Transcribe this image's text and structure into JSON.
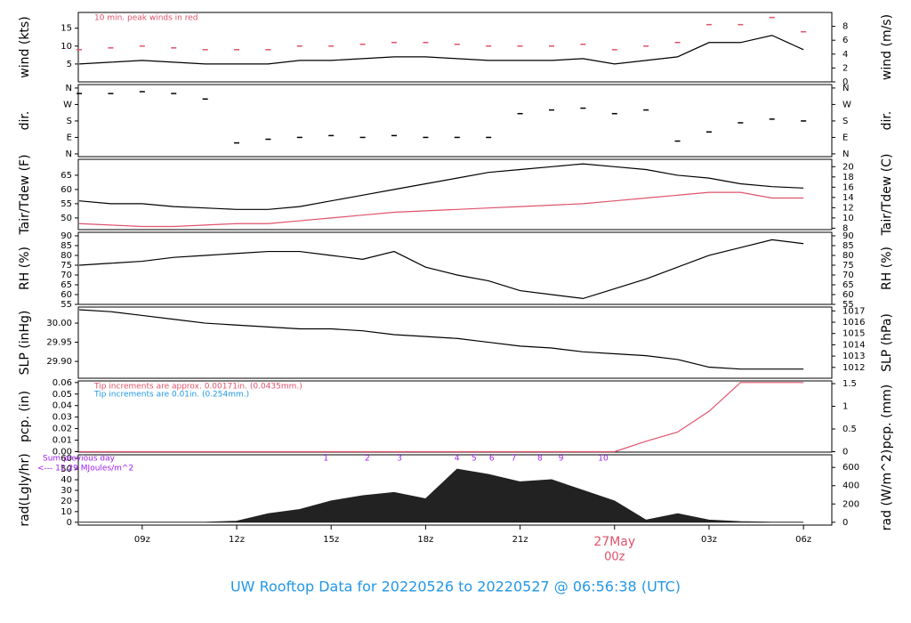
{
  "title": "UW Rooftop Data for 20220526  to  20220527 @ 06:56:38  (UTC)",
  "chart_data": [
    {
      "type": "line",
      "ylabel": "wind (kts)",
      "y2label": "wind (m/s)",
      "xlim": [
        6.97,
        30.9
      ],
      "x": [
        7,
        8,
        9,
        10,
        11,
        12,
        13,
        14,
        15,
        16,
        17,
        18,
        19,
        20,
        21,
        22,
        23,
        24,
        25,
        26,
        27,
        28,
        29,
        30
      ],
      "ylim": [
        0,
        19.4
      ],
      "yticks": [
        5,
        10,
        15
      ],
      "y2lim": [
        0,
        10
      ],
      "y2ticks": [
        0,
        2,
        4,
        6,
        8
      ],
      "notes": [
        {
          "text": "10 min. peak winds in red",
          "color": "#df536b"
        }
      ],
      "series": [
        {
          "color": "#000000",
          "values": [
            5,
            5.5,
            6,
            5.5,
            5,
            5,
            5,
            6,
            6,
            6.5,
            7,
            7,
            6.5,
            6,
            6,
            6,
            6.5,
            5,
            6,
            7,
            11,
            11,
            13,
            9
          ]
        },
        {
          "color": "#df536b",
          "marker": "dash",
          "values": [
            9,
            9.5,
            10,
            9.5,
            9,
            9,
            9,
            10,
            10,
            10.5,
            11,
            11,
            10.5,
            10,
            10,
            10,
            10.5,
            9,
            10,
            11,
            16,
            16,
            18,
            14
          ]
        }
      ]
    },
    {
      "type": "scatter",
      "ylabel": "dir.",
      "y2label": "dir.",
      "xlim": [
        6.97,
        30.9
      ],
      "x": [
        7,
        8,
        9,
        10,
        11,
        12,
        13,
        14,
        15,
        16,
        17,
        18,
        19,
        20,
        21,
        22,
        23,
        24,
        25,
        26,
        27,
        28,
        29,
        30
      ],
      "ylim": [
        -15,
        379
      ],
      "yticks": [
        {
          "value": 0,
          "label": "N"
        },
        {
          "value": 90,
          "label": "E"
        },
        {
          "value": 180,
          "label": "S"
        },
        {
          "value": 270,
          "label": "W"
        },
        {
          "value": 360,
          "label": "N"
        }
      ],
      "y2lim": [
        -15,
        379
      ],
      "y2ticks": [
        {
          "value": 0,
          "label": "N"
        },
        {
          "value": 90,
          "label": "E"
        },
        {
          "value": 180,
          "label": "S"
        },
        {
          "value": 270,
          "label": "W"
        },
        {
          "value": 360,
          "label": "N"
        }
      ],
      "series": [
        {
          "color": "#000000",
          "values": [
            330,
            330,
            340,
            330,
            300,
            60,
            80,
            90,
            100,
            90,
            100,
            90,
            90,
            90,
            220,
            240,
            250,
            220,
            240,
            70,
            120,
            170,
            190,
            180
          ]
        }
      ]
    },
    {
      "type": "line",
      "ylabel": "Tair/Tdew (F)",
      "y2label": "Tair/Tdew (C)",
      "xlim": [
        6.97,
        30.9
      ],
      "x": [
        7,
        8,
        9,
        10,
        11,
        12,
        13,
        14,
        15,
        16,
        17,
        18,
        19,
        20,
        21,
        22,
        23,
        24,
        25,
        26,
        27,
        28,
        29,
        30
      ],
      "ylim": [
        45.9,
        70.6
      ],
      "yticks": [
        50,
        55,
        60,
        65
      ],
      "y2lim": [
        7.72,
        21.44
      ],
      "y2ticks": [
        8,
        10,
        12,
        14,
        16,
        18,
        20
      ],
      "series": [
        {
          "color": "#000000",
          "values": [
            56,
            55,
            55,
            54,
            53.5,
            53,
            53,
            54,
            56,
            58,
            60,
            62,
            64,
            66,
            67,
            68,
            69,
            68,
            67,
            65,
            64,
            62,
            61,
            60.5
          ]
        },
        {
          "color": "#df536b",
          "values": [
            48,
            47.5,
            47,
            47,
            47.5,
            48,
            48,
            49,
            50,
            51,
            52,
            52.5,
            53,
            53.5,
            54,
            54.5,
            55,
            56,
            57,
            58,
            59,
            59,
            57,
            57
          ]
        }
      ]
    },
    {
      "type": "line",
      "ylabel": "RH (%)",
      "y2label": "RH (%)",
      "xlim": [
        6.97,
        30.9
      ],
      "x": [
        7,
        8,
        9,
        10,
        11,
        12,
        13,
        14,
        15,
        16,
        17,
        18,
        19,
        20,
        21,
        22,
        23,
        24,
        25,
        26,
        27,
        28,
        29,
        30
      ],
      "ylim": [
        55,
        91.8
      ],
      "yticks": [
        55,
        60,
        65,
        70,
        75,
        80,
        85,
        90
      ],
      "y2lim": [
        55,
        91.8
      ],
      "y2ticks": [
        55,
        60,
        65,
        70,
        75,
        80,
        85,
        90
      ],
      "series": [
        {
          "color": "#000000",
          "values": [
            75,
            76,
            77,
            79,
            80,
            81,
            82,
            82,
            80,
            78,
            82,
            74,
            70,
            67,
            62,
            60,
            58,
            63,
            68,
            74,
            80,
            84,
            88,
            86
          ]
        }
      ]
    },
    {
      "type": "line",
      "ylabel": "SLP (inHg)",
      "y2label": "SLP (hPa)",
      "xlim": [
        6.97,
        30.9
      ],
      "x": [
        7,
        8,
        9,
        10,
        11,
        12,
        13,
        14,
        15,
        16,
        17,
        18,
        19,
        20,
        21,
        22,
        23,
        24,
        25,
        26,
        27,
        28,
        29,
        30
      ],
      "ylim": [
        29.856,
        30.042
      ],
      "yticks": [
        {
          "value": 29.9,
          "label": "29.90"
        },
        {
          "value": 29.95,
          "label": "29.95"
        },
        {
          "value": 30,
          "label": "30.00"
        }
      ],
      "y2lim": [
        1011.04,
        1017.34
      ],
      "y2ticks": [
        1012,
        1013,
        1014,
        1015,
        1016,
        1017
      ],
      "series": [
        {
          "color": "#000000",
          "values": [
            30.035,
            30.03,
            30.02,
            30.01,
            30.0,
            29.995,
            29.99,
            29.985,
            29.985,
            29.98,
            29.97,
            29.965,
            29.96,
            29.95,
            29.94,
            29.935,
            29.925,
            29.92,
            29.915,
            29.905,
            29.885,
            29.88,
            29.88,
            29.88
          ]
        }
      ]
    },
    {
      "type": "line",
      "ylabel": "pcp. (in)",
      "y2label": "pcp. (mm)",
      "xlim": [
        6.97,
        30.9
      ],
      "x": [
        7,
        8,
        9,
        10,
        11,
        12,
        13,
        14,
        15,
        16,
        17,
        18,
        19,
        20,
        21,
        22,
        23,
        24,
        25,
        26,
        27,
        28,
        29,
        30
      ],
      "ylim": [
        -0.0004,
        0.0614
      ],
      "yticks": [
        {
          "value": 0,
          "label": "0.00"
        },
        0.01,
        0.02,
        0.03,
        0.04,
        0.05,
        0.06
      ],
      "y2lim": [
        -0.01,
        1.56
      ],
      "y2ticks": [
        0,
        0.5,
        1,
        1.5
      ],
      "notes": [
        {
          "text": "Tip increments are approx. 0.00171in. (0.0435mm.)",
          "color": "#df536b"
        },
        {
          "text": "Tip increments are 0.01in. (0.254mm.)",
          "color": "#2297e6"
        }
      ],
      "series": [
        {
          "color": "#df536b",
          "values": [
            0,
            0,
            0,
            0,
            0,
            0,
            0,
            0,
            0,
            0,
            0,
            0,
            0,
            0,
            0,
            0,
            0,
            0,
            0.009,
            0.017,
            0.035,
            0.06,
            0.06,
            0.06
          ]
        }
      ]
    },
    {
      "type": "area",
      "ylabel": "rad(Lgly/hr)",
      "y2label": "rad (W/m^2)",
      "xlim": [
        6.97,
        30.9
      ],
      "x": [
        7,
        8,
        9,
        10,
        11,
        12,
        13,
        14,
        15,
        16,
        17,
        18,
        19,
        20,
        21,
        22,
        23,
        24,
        25,
        26,
        27,
        28,
        29,
        30
      ],
      "ylim": [
        -2.7,
        63.5
      ],
      "yticks": [
        0,
        10,
        20,
        30,
        40,
        50,
        60
      ],
      "y2lim": [
        -31.4,
        738.5
      ],
      "y2ticks": [
        0,
        200,
        400,
        600
      ],
      "side_notes": [
        {
          "text": "Sum previous day",
          "color": "#a020f0"
        },
        {
          "text": "<--- 12.29 MJoules/m^2",
          "color": "#a020f0"
        }
      ],
      "events": {
        "color": "#a020f0",
        "x": [
          14.83,
          16.15,
          17.17,
          19.0,
          19.54,
          20.1,
          20.8,
          21.63,
          22.3,
          23.64
        ],
        "labels": [
          "1",
          "2",
          "3",
          "4",
          "5",
          "6",
          "7",
          "8",
          "9",
          "10"
        ]
      },
      "xticks": [
        {
          "value": 9,
          "label": "09z"
        },
        {
          "value": 12,
          "label": "12z"
        },
        {
          "value": 15,
          "label": "15z"
        },
        {
          "value": 18,
          "label": "18z"
        },
        {
          "value": 21,
          "label": "21z"
        },
        {
          "value": 24,
          "label": "00z"
        },
        {
          "value": 27,
          "label": "03z"
        },
        {
          "value": 30,
          "label": "06z"
        }
      ],
      "date_tick": {
        "value": 24,
        "label": "27May",
        "color": "#df536b"
      },
      "series": [
        {
          "color": "#222222",
          "values": [
            0,
            0,
            0,
            0,
            0,
            1,
            8,
            12,
            20,
            25,
            28,
            22,
            50,
            45,
            38,
            40,
            30,
            20,
            2,
            8,
            2,
            0.5,
            0,
            0
          ]
        }
      ]
    }
  ]
}
